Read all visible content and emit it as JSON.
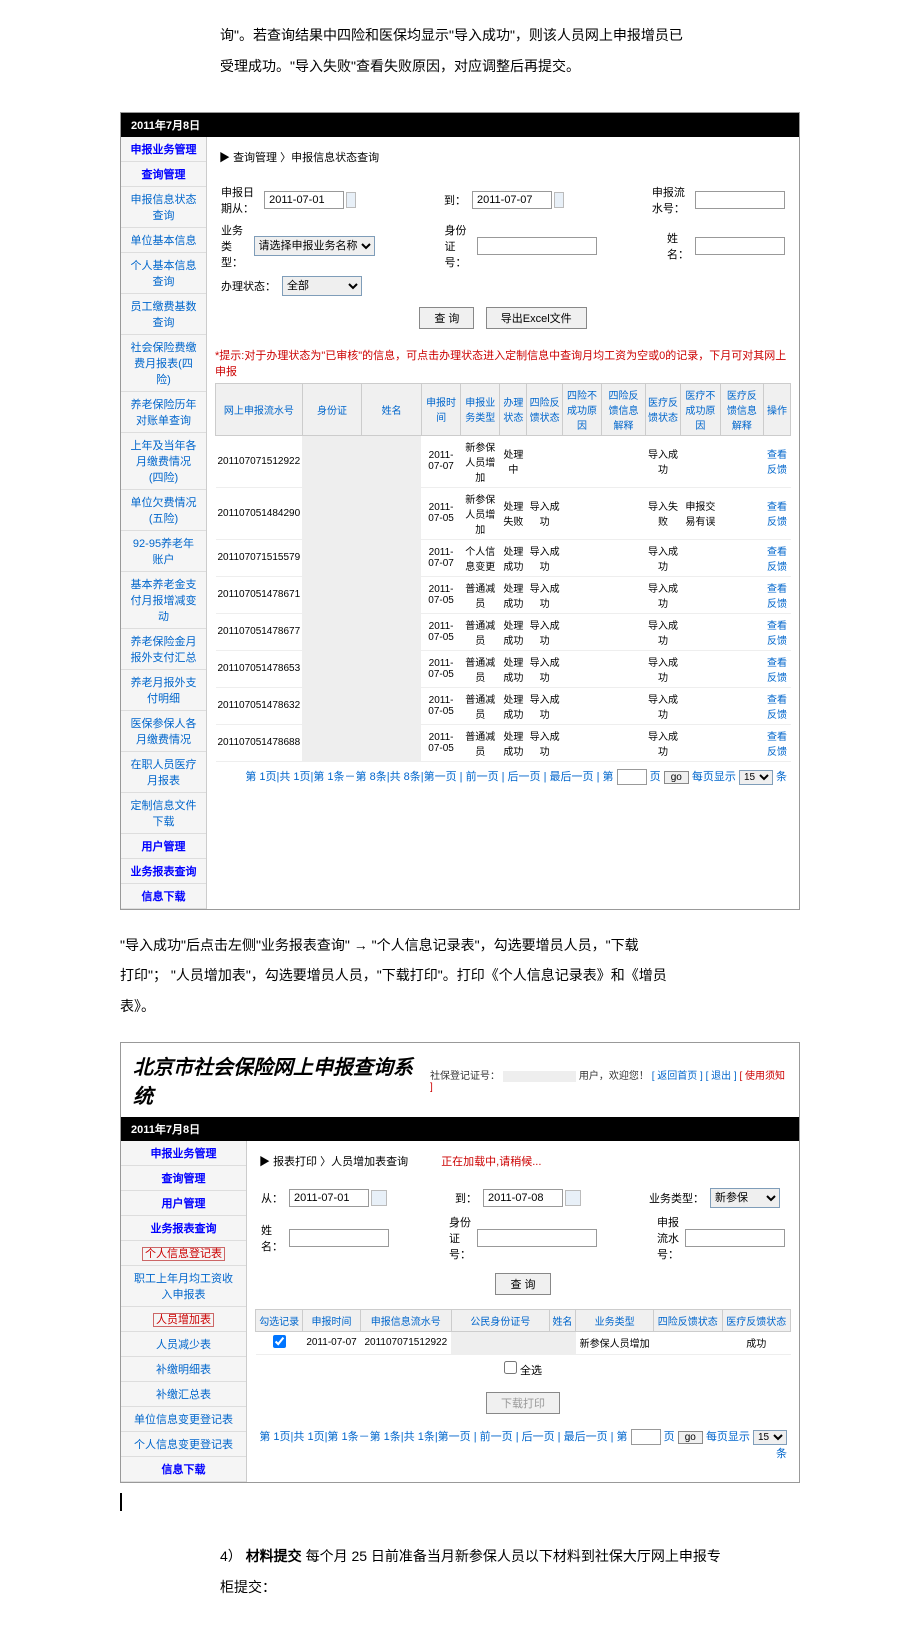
{
  "intro": {
    "line1": "询\"。若查询结果中四险和医保均显示\"导入成功\"，则该人员网上申报增员已",
    "line2": "受理成功。\"导入失败\"查看失败原因，对应调整后再提交。"
  },
  "s1": {
    "date_header": "2011年7月8日",
    "sidebar": {
      "h1": "申报业务管理",
      "h2": "查询管理",
      "items": [
        "申报信息状态查询",
        "单位基本信息",
        "个人基本信息查询",
        "员工缴费基数查询",
        "社会保险费缴费月报表(四险)",
        "养老保险历年对账单查询",
        "上年及当年各月缴费情况(四险)",
        "单位欠费情况(五险)",
        "92-95养老年账户",
        "基本养老金支付月报增减变动",
        "养老保险金月报外支付汇总",
        "养老月报外支付明细",
        "医保参保人各月缴费情况",
        "在职人员医疗月报表",
        "定制信息文件下载"
      ],
      "h3": "用户管理",
      "h4": "业务报表查询",
      "h5": "信息下载"
    },
    "breadcrumb": "查询管理 〉申报信息状态查询",
    "form": {
      "date_from_label": "申报日期从：",
      "date_from": "2011-07-01",
      "date_to_label": "到：",
      "date_to": "2011-07-07",
      "serial_label": "申报流水号：",
      "type_label": "业务类型：",
      "type_placeholder": "请选择申报业务名称",
      "id_label": "身份证号：",
      "name_label": "姓名：",
      "status_label": "办理状态：",
      "status_value": "全部",
      "btn_query": "查 询",
      "btn_export": "导出Excel文件"
    },
    "hint": "*提示:对于办理状态为\"已审核\"的信息，可点击办理状态进入定制信息中查询月均工资为空或0的记录，下月可对其网上申报",
    "columns": [
      "网上申报流水号",
      "身份证",
      "姓名",
      "申报时间",
      "申报业务类型",
      "办理状态",
      "四险反馈状态",
      "四险不成功原因",
      "四险反馈信息解释",
      "医疗反馈状态",
      "医疗不成功原因",
      "医疗反馈信息解释",
      "操作"
    ],
    "rows": [
      {
        "serial": "201107071512922",
        "date": "2011-07-07",
        "type": "新参保人员增加",
        "status": "处理中",
        "four": "",
        "four_r": "",
        "four_d": "",
        "med": "导入成功",
        "med_r": "",
        "med_d": ""
      },
      {
        "serial": "201107051484290",
        "date": "2011-07-05",
        "type": "新参保人员增加",
        "status": "处理失败",
        "four": "导入成功",
        "four_r": "",
        "four_d": "",
        "med": "导入失败",
        "med_r": "申报交易有误",
        "med_d": ""
      },
      {
        "serial": "201107071515579",
        "date": "2011-07-07",
        "type": "个人信息变更",
        "status": "处理成功",
        "four": "导入成功",
        "four_r": "",
        "four_d": "",
        "med": "导入成功",
        "med_r": "",
        "med_d": ""
      },
      {
        "serial": "201107051478671",
        "date": "2011-07-05",
        "type": "普通减员",
        "status": "处理成功",
        "four": "导入成功",
        "four_r": "",
        "four_d": "",
        "med": "导入成功",
        "med_r": "",
        "med_d": ""
      },
      {
        "serial": "201107051478677",
        "date": "2011-07-05",
        "type": "普通减员",
        "status": "处理成功",
        "four": "导入成功",
        "four_r": "",
        "four_d": "",
        "med": "导入成功",
        "med_r": "",
        "med_d": ""
      },
      {
        "serial": "201107051478653",
        "date": "2011-07-05",
        "type": "普通减员",
        "status": "处理成功",
        "four": "导入成功",
        "four_r": "",
        "four_d": "",
        "med": "导入成功",
        "med_r": "",
        "med_d": ""
      },
      {
        "serial": "201107051478632",
        "date": "2011-07-05",
        "type": "普通减员",
        "status": "处理成功",
        "four": "导入成功",
        "four_r": "",
        "four_d": "",
        "med": "导入成功",
        "med_r": "",
        "med_d": ""
      },
      {
        "serial": "201107051478688",
        "date": "2011-07-05",
        "type": "普通减员",
        "status": "处理成功",
        "four": "导入成功",
        "four_r": "",
        "four_d": "",
        "med": "导入成功",
        "med_r": "",
        "med_d": ""
      }
    ],
    "action_label": "查看反馈",
    "pager": "第 1页|共 1页|第 1条－第 8条|共 8条|第一页 | 前一页 | 后一页 | 最后一页 | 第",
    "pager_go": "go",
    "pager_tail": "每页显示",
    "pager_size": "15",
    "pager_unit": "条"
  },
  "mid": {
    "t1": "\"导入成功\"后点击左侧\"业务报表查询\"",
    "arrow": "→",
    "t2": "\"个人信息记录表\"，勾选要增员人员，\"下载",
    "t3": "打印\"；  \"人员增加表\"，勾选要增员人员，\"下载打印\"。打印《个人信息记录表》和《增员",
    "t4": "表》。"
  },
  "s2": {
    "sys_title": "北京市社会保险网上申报查询系统",
    "top_right_a": "社保登记证号：",
    "top_right_b": "用户，欢迎您！",
    "top_right_links": "[ 返回首页 ] [ 退出 ]",
    "top_right_red": "[ 使用须知 ]",
    "date_header": "2011年7月8日",
    "sidebar": {
      "h1": "申报业务管理",
      "h2": "查询管理",
      "h3": "用户管理",
      "h4": "业务报表查询",
      "items": [
        "个人信息登记表",
        "职工上年月均工资收入申报表",
        "人员增加表",
        "人员减少表",
        "补缴明细表",
        "补缴汇总表",
        "单位信息变更登记表",
        "个人信息变更登记表"
      ],
      "h5": "信息下载"
    },
    "breadcrumb": "报表打印 〉人员增加表查询",
    "loading": "正在加载中,请稍候...",
    "form": {
      "from_label": "从：",
      "from": "2011-07-01",
      "to_label": "到：",
      "to": "2011-07-08",
      "type_label": "业务类型：",
      "type_value": "新参保",
      "name_label": "姓名：",
      "id_label": "身份证号：",
      "serial_label": "申报流水号：",
      "btn_query": "查 询"
    },
    "columns": [
      "勾选记录",
      "申报时间",
      "申报信息流水号",
      "公民身份证号",
      "姓名",
      "业务类型",
      "四险反馈状态",
      "医疗反馈状态"
    ],
    "row": {
      "time": "2011-07-07",
      "serial": "201107071512922",
      "type": "新参保人员增加",
      "med": "成功"
    },
    "select_all": "全选",
    "btn_dl": "下载打印",
    "pager": "第 1页|共 1页|第 1条－第 1条|共 1条|第一页 | 前一页 | 后一页 | 最后一页 | 第",
    "pager_go": "go",
    "pager_tail": "每页显示",
    "pager_size": "15",
    "pager_unit": "条"
  },
  "sec4": {
    "label": "4）",
    "bold": "材料提交",
    "text1": "  每个月 25 日前准备当月新参保人员以下材料到社保大厅网上申报专",
    "text2": "柜提交："
  }
}
